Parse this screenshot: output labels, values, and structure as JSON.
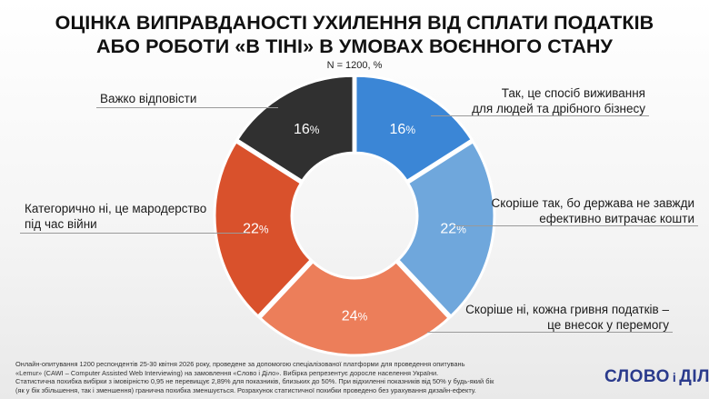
{
  "title": {
    "line1": "ОЦІНКА ВИПРАВДАНОСТІ УХИЛЕННЯ ВІД СПЛАТИ ПОДАТКІВ",
    "line2": "АБО РОБОТИ «В ТІНІ» В УМОВАХ ВОЄННОГО СТАНУ"
  },
  "subtitle": "N = 1200, %",
  "chart_data": {
    "type": "pie",
    "donut": true,
    "unit": "%",
    "slices": [
      {
        "label": "Так, це спосіб виживання для людей та дрібного бізнесу",
        "value": 16,
        "color": "#3b86d6"
      },
      {
        "label": "Скоріше так, бо держава не завжди ефективно витрачає кошти",
        "value": 22,
        "color": "#6fa7dc"
      },
      {
        "label": "Скоріше ні, кожна гривня податків – це внесок у перемогу",
        "value": 24,
        "color": "#ec7e5a"
      },
      {
        "label": "Категорично ні, це мародерство під час війни",
        "value": 22,
        "color": "#d9512c"
      },
      {
        "label": "Важко відповісти",
        "value": 16,
        "color": "#303030"
      }
    ]
  },
  "labels": {
    "s0": [
      "Так, це спосіб виживання",
      "для людей та дрібного бізнесу"
    ],
    "s1": [
      "Скоріше так, бо держава не завжди",
      "ефективно витрачає кошти"
    ],
    "s2": [
      "Скоріше ні, кожна гривня податків –",
      "це внесок у перемогу"
    ],
    "s3": [
      "Категорично ні, це мародерство",
      "під час війни"
    ],
    "s4": [
      "Важко відповісти"
    ]
  },
  "footer": [
    "Онлайн-опитування 1200 респондентів 25-30 квітня 2026 року, проведене за допомогою спеціалізованої платформи для проведення опитувань",
    "«Lemur» (CAWI – Computer Assisted Web Interviewing) на замовлення «Слово і Діло». Вибірка репрезентує доросле населення України.",
    "Статистична похибка вибірки з імовірністю 0,95 не перевищує 2,89% для показників, близьких до 50%. При відхиленні показників від 50% у будь-який бік",
    "(як у бік збільшення, так і зменшення) гранична похибка зменшується. Розрахунок статистичної похибки проведено без урахування дизайн-ефекту."
  ],
  "logo": {
    "word1": "СЛОВО",
    "word2": "і",
    "word3": "ДІЛО"
  }
}
